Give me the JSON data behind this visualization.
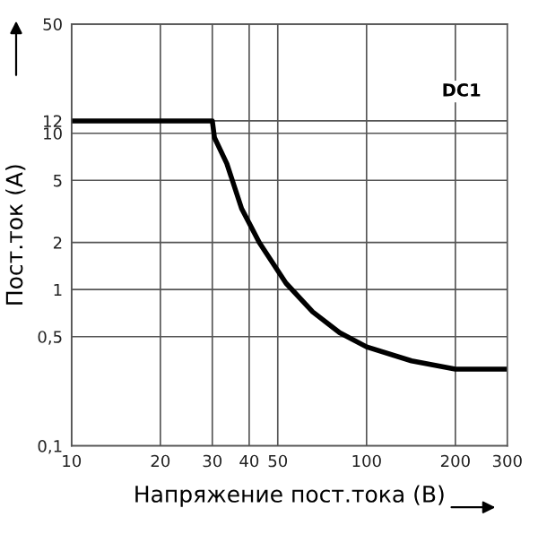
{
  "chart_data": {
    "type": "line",
    "xlabel": "Напряжение пост.тока (В)",
    "ylabel": "Пост.ток (A)",
    "annotations": [
      "DC1"
    ],
    "x": [
      10,
      30,
      30.5,
      33.6,
      37.7,
      43.3,
      53.3,
      65.7,
      81,
      100,
      142,
      200,
      265,
      300
    ],
    "series": [
      {
        "color": "#000000",
        "values": [
          12,
          12,
          9.4,
          6.4,
          3.3,
          2,
          1.1,
          0.72,
          0.53,
          0.43,
          0.35,
          0.31,
          0.31,
          0.31
        ]
      }
    ],
    "log": "xy",
    "grid": true,
    "marker": "none",
    "line_style": "solid",
    "xlim": [
      10,
      300
    ],
    "ylim": [
      0.1,
      50
    ],
    "xticks": [
      10,
      20,
      30,
      40,
      50,
      100,
      200,
      300
    ],
    "yticks": [
      {
        "value": 0.1,
        "label": "0,1"
      },
      {
        "value": 0.5,
        "label": "0,5"
      },
      1,
      2,
      5,
      10,
      12,
      50
    ]
  }
}
